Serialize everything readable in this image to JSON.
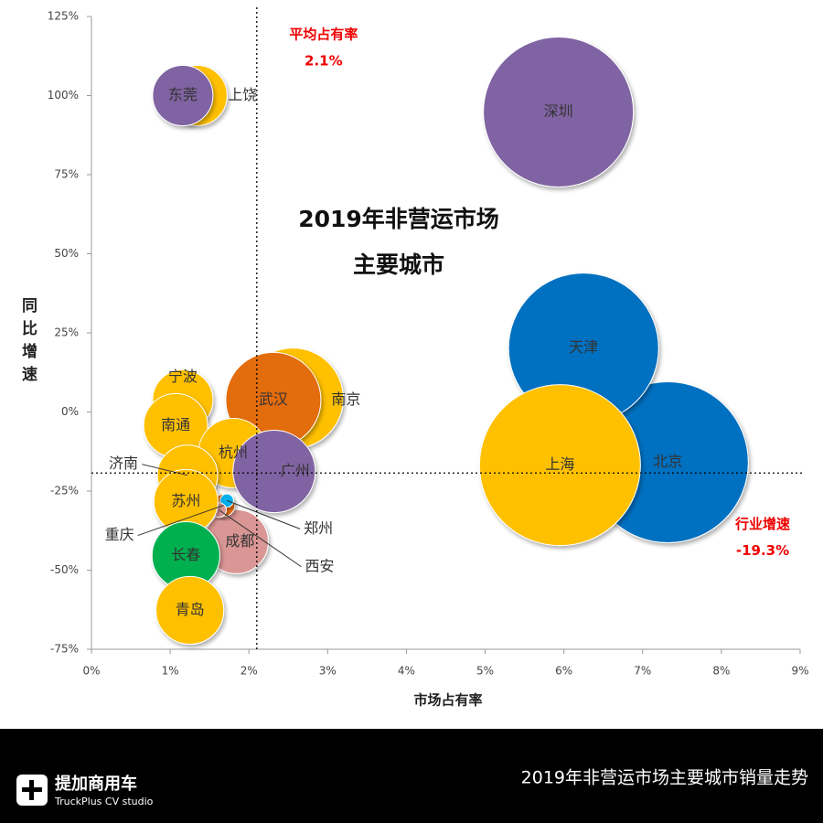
{
  "chart_data": {
    "type": "bubble",
    "title_lines": [
      "2019年非营运市场",
      "主要城市"
    ],
    "x_label": "市场占有率",
    "y_label": "同比增速",
    "xlim": [
      0,
      9
    ],
    "ylim": [
      -75,
      125
    ],
    "xticks": [
      {
        "value": 0,
        "label": "0%"
      },
      {
        "value": 1,
        "label": "1%"
      },
      {
        "value": 2,
        "label": "2%"
      },
      {
        "value": 3,
        "label": "3%"
      },
      {
        "value": 4,
        "label": "4%"
      },
      {
        "value": 5,
        "label": "5%"
      },
      {
        "value": 6,
        "label": "6%"
      },
      {
        "value": 7,
        "label": "7%"
      },
      {
        "value": 8,
        "label": "8%"
      },
      {
        "value": 9,
        "label": "9%"
      }
    ],
    "yticks": [
      {
        "value": -75,
        "label": "-75%"
      },
      {
        "value": -50,
        "label": "-50%"
      },
      {
        "value": -25,
        "label": "-25%"
      },
      {
        "value": 0,
        "label": "0%"
      },
      {
        "value": 25,
        "label": "25%"
      },
      {
        "value": 50,
        "label": "50%"
      },
      {
        "value": 75,
        "label": "75%"
      },
      {
        "value": 100,
        "label": "100%"
      },
      {
        "value": 125,
        "label": "125%"
      }
    ],
    "average_share": {
      "label": "平均占有率",
      "value": 2.1,
      "value_label": "2.1%"
    },
    "industry_growth": {
      "label": "行业增速",
      "value": -19.3,
      "value_label": "-19.3%"
    },
    "points": [
      {
        "name": "上饶",
        "color": "#ffc000",
        "x": 1.34,
        "y": 100,
        "size": 1.03
      },
      {
        "name": "东莞",
        "color": "#8064a2",
        "x": 1.16,
        "y": 100,
        "size": 1.03
      },
      {
        "name": "深圳",
        "color": "#8064a2",
        "x": 5.93,
        "y": 94.8,
        "size": 6.37
      },
      {
        "name": "北京",
        "color": "#0070c0",
        "x": 7.32,
        "y": -15.9,
        "size": 7.33
      },
      {
        "name": "天津",
        "color": "#0070c0",
        "x": 6.25,
        "y": 20.2,
        "size": 6.37
      },
      {
        "name": "上海",
        "color": "#ffc000",
        "x": 5.95,
        "y": -16.8,
        "size": 7.33
      },
      {
        "name": "南京",
        "color": "#ffc000",
        "x": 2.56,
        "y": 4.3,
        "size": 2.86
      },
      {
        "name": "武汉",
        "color": "#e36c09",
        "x": 2.31,
        "y": 3.8,
        "size": 2.56
      },
      {
        "name": "宁波",
        "color": "#ffc000",
        "x": 1.16,
        "y": 3.8,
        "size": 1.03
      },
      {
        "name": "南通",
        "color": "#ffc000",
        "x": 1.07,
        "y": -4.3,
        "size": 1.16
      },
      {
        "name": "杭州",
        "color": "#ffc000",
        "x": 1.8,
        "y": -13,
        "size": 1.37
      },
      {
        "name": "广州",
        "color": "#8064a2",
        "x": 2.32,
        "y": -18.8,
        "size": 1.92
      },
      {
        "name": "济南",
        "color": "#ffc000",
        "x": 1.22,
        "y": -20,
        "size": 1.03
      },
      {
        "name": "成都",
        "color": "#d99694",
        "x": 1.84,
        "y": -41,
        "size": 1.16
      },
      {
        "name": "重庆",
        "color": "#e36c09",
        "x": 1.68,
        "y": -29.5,
        "size": 0.14
      },
      {
        "name": "郑州",
        "color": "#00b0f0",
        "x": 1.72,
        "y": -28,
        "size": 0.05
      },
      {
        "name": "西安",
        "color": "#d99694",
        "x": 1.62,
        "y": -31,
        "size": 0.06
      },
      {
        "name": "苏州",
        "color": "#ffc000",
        "x": 1.2,
        "y": -28.3,
        "size": 1.16
      },
      {
        "name": "长春",
        "color": "#00b050",
        "x": 1.2,
        "y": -45.4,
        "size": 1.3
      },
      {
        "name": "青岛",
        "color": "#ffc000",
        "x": 1.25,
        "y": -62.7,
        "size": 1.3
      }
    ]
  },
  "footer": {
    "brand": "提加商用车",
    "brand_sub": "TruckPlus CV studio",
    "caption": "2019年非营运市场主要城市销量走势"
  }
}
